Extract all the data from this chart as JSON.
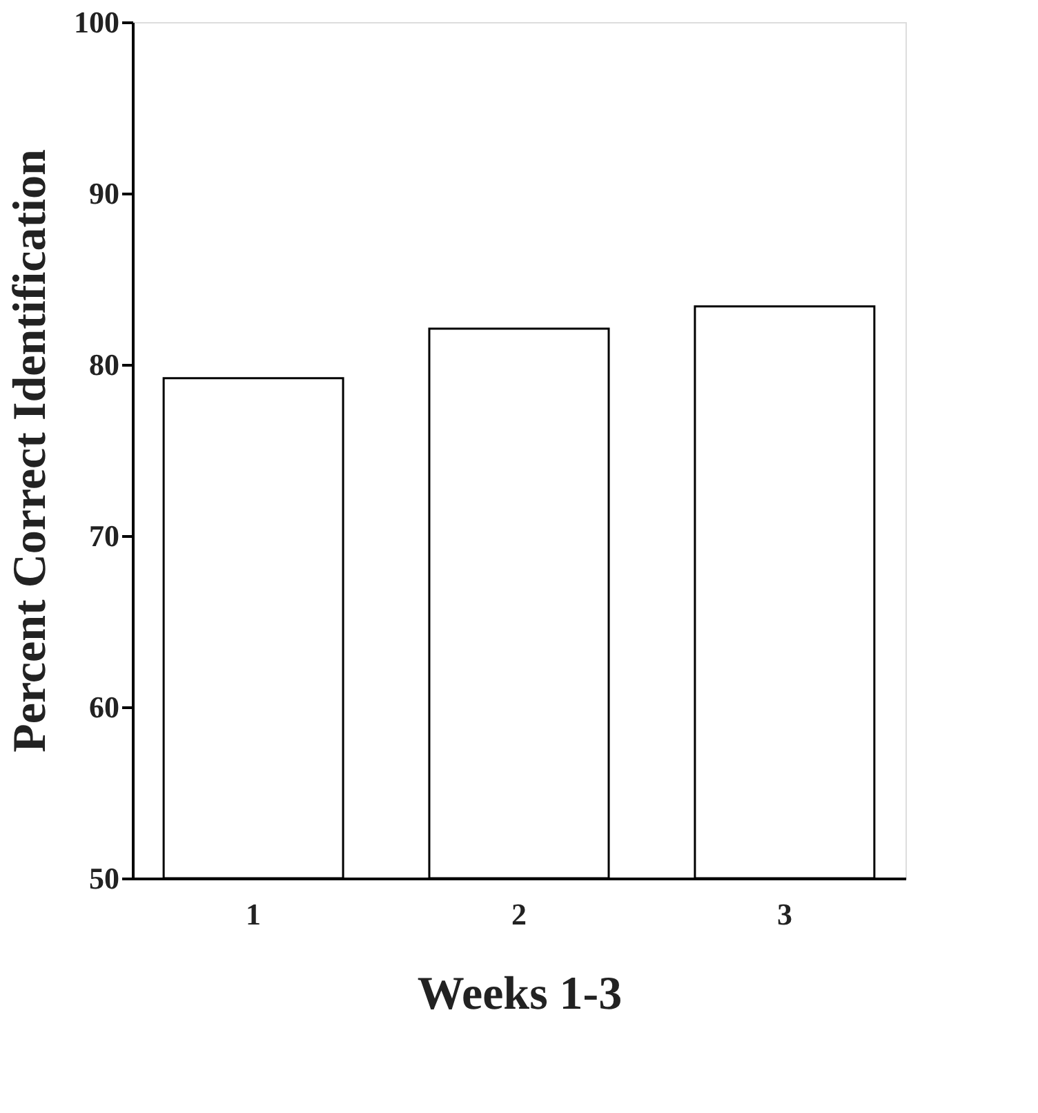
{
  "chart_data": {
    "type": "bar",
    "xlabel": "Weeks 1-3",
    "ylabel": "Percent Correct Identification",
    "categories": [
      "1",
      "2",
      "3"
    ],
    "series": [
      {
        "color": "#ffffff",
        "values": [
          79.2,
          82.1,
          83.4
        ]
      }
    ],
    "ylim": [
      50,
      100
    ],
    "yticks": [
      50,
      60,
      70,
      80,
      90,
      100
    ],
    "grid": false
  }
}
